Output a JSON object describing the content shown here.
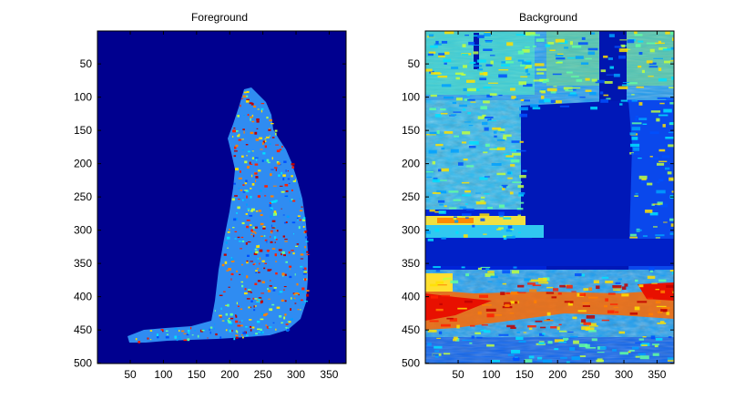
{
  "chart_data": [
    {
      "type": "heatmap",
      "title": "Foreground",
      "colormap": "jet",
      "background_color": "#00008f",
      "xlim": [
        0.5,
        375.5
      ],
      "ylim": [
        0.5,
        500.5
      ],
      "y_reversed": true,
      "x_ticks": [
        50,
        100,
        150,
        200,
        250,
        300,
        350
      ],
      "y_ticks": [
        50,
        100,
        150,
        200,
        250,
        300,
        350,
        400,
        450,
        500
      ],
      "content": "cat silhouette feature map; bright yellow/red speckles on head, back and body"
    },
    {
      "type": "heatmap",
      "title": "Background",
      "colormap": "jet",
      "background_color": "#00008f",
      "xlim": [
        0.5,
        375.5
      ],
      "ylim": [
        0.5,
        500.5
      ],
      "y_reversed": true,
      "x_ticks": [
        50,
        100,
        150,
        200,
        250,
        300,
        350
      ],
      "y_ticks": [
        50,
        100,
        150,
        200,
        250,
        300,
        350,
        400,
        450,
        500
      ],
      "content": "background feature map; cat region masked dark blue, cyan/yellow texture elsewhere, red band near bottom"
    }
  ]
}
